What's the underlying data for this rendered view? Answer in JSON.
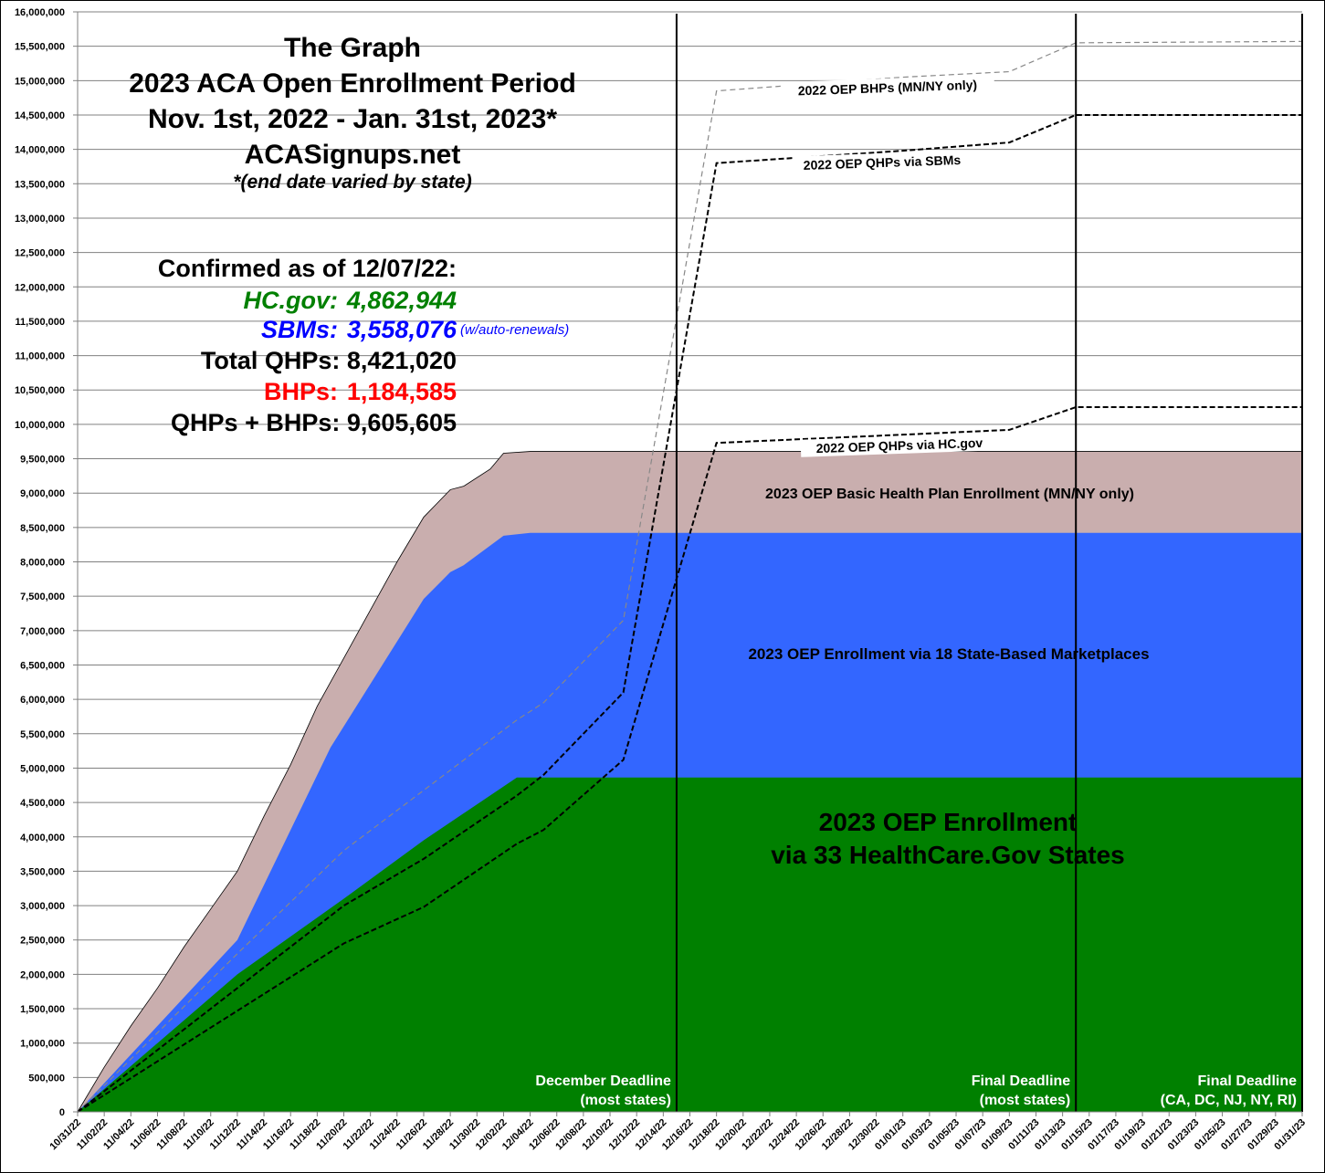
{
  "chart_data": {
    "type": "area",
    "title": [
      "The Graph",
      "2023 ACA Open Enrollment Period",
      "Nov. 1st, 2022 - Jan. 31st, 2023*",
      "ACASignups.net"
    ],
    "subtitle": "*(end date varied by state)",
    "ylim": [
      0,
      16000000
    ],
    "ytick_step": 500000,
    "y_tick_labels": [
      "0",
      "500,000",
      "1,000,000",
      "1,500,000",
      "2,000,000",
      "2,500,000",
      "3,000,000",
      "3,500,000",
      "4,000,000",
      "4,500,000",
      "5,000,000",
      "5,500,000",
      "6,000,000",
      "6,500,000",
      "7,000,000",
      "7,500,000",
      "8,000,000",
      "8,500,000",
      "9,000,000",
      "9,500,000",
      "10,000,000",
      "10,500,000",
      "11,000,000",
      "11,500,000",
      "12,000,000",
      "12,500,000",
      "13,000,000",
      "13,500,000",
      "14,000,000",
      "14,500,000",
      "15,000,000",
      "15,500,000",
      "16,000,000"
    ],
    "x_unit": "days since 10/31/22",
    "xlim": [
      0,
      92
    ],
    "x_tick_labels": [
      "10/31/22",
      "11/02/22",
      "11/04/22",
      "11/06/22",
      "11/08/22",
      "11/10/22",
      "11/12/22",
      "11/14/22",
      "11/16/22",
      "11/18/22",
      "11/20/22",
      "11/22/22",
      "11/24/22",
      "11/26/22",
      "11/28/22",
      "11/30/22",
      "12/02/22",
      "12/04/22",
      "12/06/22",
      "12/08/22",
      "12/10/22",
      "12/12/22",
      "12/14/22",
      "12/16/22",
      "12/18/22",
      "12/20/22",
      "12/22/22",
      "12/24/22",
      "12/26/22",
      "12/28/22",
      "12/30/22",
      "01/01/23",
      "01/03/23",
      "01/05/23",
      "01/07/23",
      "01/09/23",
      "01/11/23",
      "01/13/23",
      "01/15/23",
      "01/17/23",
      "01/19/23",
      "01/21/23",
      "01/23/23",
      "01/25/23",
      "01/27/23",
      "01/29/23",
      "01/31/23"
    ],
    "grid": true,
    "areas": [
      {
        "name": "2023 OEP Basic Health Plan Enrollment (MN/NY only)",
        "color": "#c9aeae",
        "x": [
          0,
          2,
          4,
          6,
          8,
          10,
          12,
          14,
          16,
          18,
          20,
          22,
          24,
          26,
          27,
          28,
          29,
          31,
          32,
          34,
          92
        ],
        "y": [
          0,
          650000,
          1250000,
          1800000,
          2400000,
          2950000,
          3500000,
          4300000,
          5050000,
          5900000,
          6600000,
          7300000,
          8000000,
          8650000,
          8850000,
          9050000,
          9100000,
          9350000,
          9580000,
          9605605,
          9605605
        ]
      },
      {
        "name": "2023 OEP Enrollment via 18 State-Based Marketplaces",
        "color": "#3366ff",
        "x": [
          0,
          12,
          19,
          25,
          26,
          28,
          29,
          32,
          34,
          92
        ],
        "y": [
          0,
          2500000,
          5300000,
          7150000,
          7460000,
          7850000,
          7950000,
          8380000,
          8421020,
          8421020
        ]
      },
      {
        "name": "2023 OEP Enrollment via 33 HealthCare.Gov States",
        "label": [
          "2023 OEP Enrollment",
          "via 33 HealthCare.Gov States"
        ],
        "color": "#008000",
        "x": [
          0,
          6,
          12,
          20,
          26,
          33,
          92
        ],
        "y": [
          0,
          1000000,
          2000000,
          3100000,
          3950000,
          4862944,
          4862944
        ]
      }
    ],
    "lines": [
      {
        "name": "2022 OEP BHPs (MN/NY only)",
        "color": "#888888",
        "style": "thin-dashed",
        "x": [
          0,
          12,
          20,
          33,
          35,
          41,
          48,
          62,
          70,
          75,
          92
        ],
        "y": [
          0,
          2300000,
          3800000,
          5700000,
          5950000,
          7150000,
          14850000,
          15050000,
          15130000,
          15550000,
          15570000
        ]
      },
      {
        "name": "2022 OEP QHPs via SBMs",
        "color": "#000000",
        "style": "dashed",
        "x": [
          0,
          20,
          26,
          33,
          35,
          41,
          48,
          62,
          70,
          75,
          92
        ],
        "y": [
          0,
          3000000,
          3680000,
          4600000,
          4900000,
          6100000,
          13800000,
          13980000,
          14100000,
          14500000,
          14500000
        ]
      },
      {
        "name": "2022 OEP QHPs via HC.gov",
        "color": "#000000",
        "style": "dashed",
        "x": [
          0,
          20,
          26,
          33,
          35,
          41,
          48,
          62,
          70,
          75,
          92
        ],
        "y": [
          0,
          2450000,
          2980000,
          3900000,
          4100000,
          5120000,
          9730000,
          9850000,
          9920000,
          10250000,
          10250000
        ]
      }
    ],
    "deadlines": [
      {
        "x": 45,
        "line1": "December Deadline",
        "line2": "(most states)"
      },
      {
        "x": 75,
        "line1": "Final Deadline",
        "line2": "(most states)"
      },
      {
        "x": 92,
        "line1": "Final Deadline",
        "line2": "(CA, DC, NJ, NY, RI)"
      }
    ],
    "stats": {
      "heading": "Confirmed as of 12/07/22:",
      "hc_label": "HC.gov:",
      "hc_value": "4,862,944",
      "sbm_label": "SBMs:",
      "sbm_value": "3,558,076",
      "sbm_note": "(w/auto-renewals)",
      "qhp_label": "Total QHPs:",
      "qhp_value": "8,421,020",
      "bhp_label": "BHPs:",
      "bhp_value": "1,184,585",
      "total_label": "QHPs + BHPs:",
      "total_value": "9,605,605"
    },
    "colors": {
      "hc": "#008000",
      "sbm": "#0000ff",
      "bhp": "#ff0000"
    }
  }
}
